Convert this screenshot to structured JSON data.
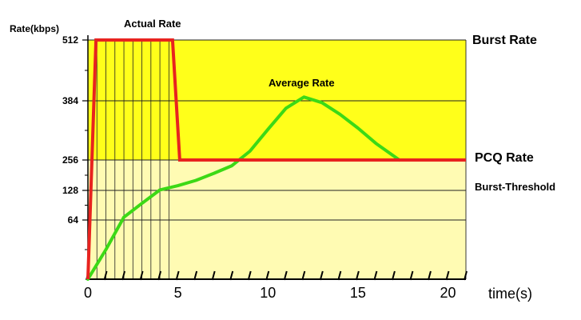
{
  "chart_data": {
    "type": "line",
    "ylabel": "Rate(kbps)",
    "xlabel": "time(s)",
    "xlim": [
      0,
      21
    ],
    "x_tick_labels": [
      0,
      5,
      10,
      15,
      20
    ],
    "y_tick_labels": [
      64,
      128,
      256,
      384,
      512
    ],
    "colors": {
      "burst_zone": "#ffff1a",
      "lower_zone": "#fffbb3",
      "actual": "#e8231f",
      "average": "#3cd916",
      "grid": "#000000"
    },
    "series": [
      {
        "name": "Actual Rate",
        "x": [
          0,
          0.45,
          4.7,
          5.1,
          21
        ],
        "y": [
          0,
          512,
          512,
          256,
          256
        ]
      },
      {
        "name": "Average Rate",
        "x": [
          0,
          1,
          2,
          3,
          4,
          5,
          6,
          7,
          8,
          9,
          10,
          11,
          12,
          13,
          14,
          15,
          16,
          17.3
        ],
        "y": [
          0,
          32,
          70,
          100,
          130,
          148,
          170,
          200,
          232,
          275,
          322,
          368,
          392,
          380,
          355,
          325,
          292,
          256
        ]
      }
    ],
    "annotations": {
      "actual_rate": "Actual Rate",
      "average_rate": "Average Rate",
      "burst_rate": "Burst Rate",
      "pcq_rate": "PCQ Rate",
      "burst_threshold": "Burst-Threshold"
    }
  }
}
